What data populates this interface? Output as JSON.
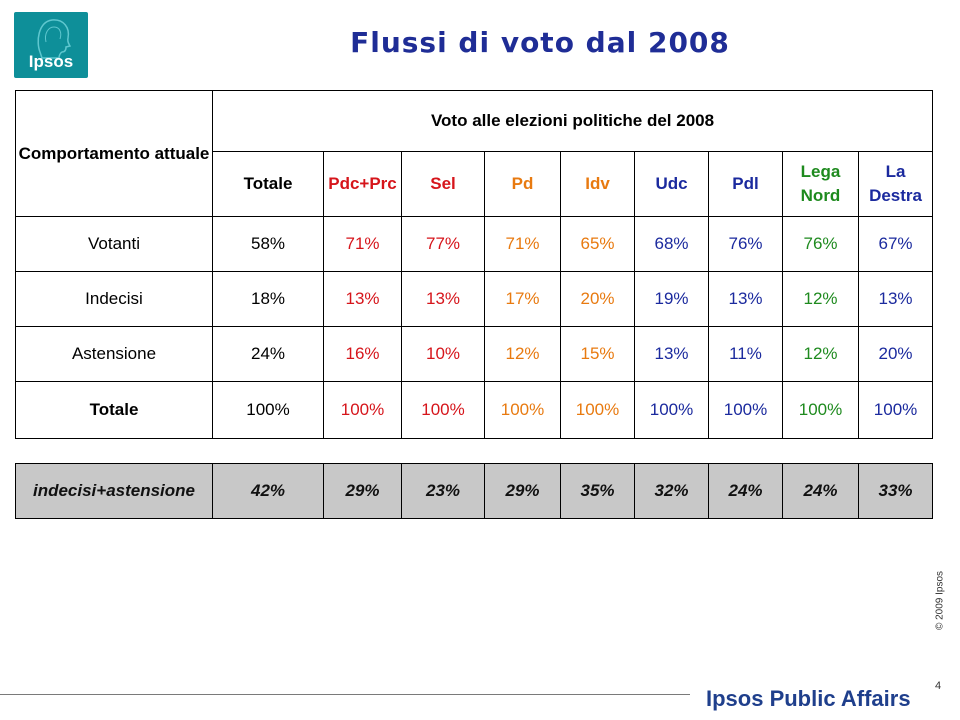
{
  "logo": {
    "text": "Ipsos",
    "color": "#0e8f99"
  },
  "title": "Flussi di voto dal 2008",
  "table": {
    "behavior_header": "Comportamento attuale",
    "vote_header": "Voto alle elezioni politiche del 2008",
    "columns": [
      {
        "label": "Totale",
        "color": "#000000"
      },
      {
        "label": "Pdc+Prc",
        "color": "#d6151b"
      },
      {
        "label": "Sel",
        "color": "#d6151b"
      },
      {
        "label": "Pd",
        "color": "#e87a10"
      },
      {
        "label": "Idv",
        "color": "#e87a10"
      },
      {
        "label": "Udc",
        "color": "#1b2a9e"
      },
      {
        "label": "Pdl",
        "color": "#1b2a9e"
      },
      {
        "label": "Lega Nord",
        "color": "#1e8a1e"
      },
      {
        "label": "La Destra",
        "color": "#1b2a9e"
      }
    ],
    "rows": [
      {
        "label": "Votanti",
        "values": [
          "58%",
          "71%",
          "77%",
          "71%",
          "65%",
          "68%",
          "76%",
          "76%",
          "67%"
        ]
      },
      {
        "label": "Indecisi",
        "values": [
          "18%",
          "13%",
          "13%",
          "17%",
          "20%",
          "19%",
          "13%",
          "12%",
          "13%"
        ]
      },
      {
        "label": "Astensione",
        "values": [
          "24%",
          "16%",
          "10%",
          "12%",
          "15%",
          "13%",
          "11%",
          "12%",
          "20%"
        ]
      },
      {
        "label": "Totale",
        "values": [
          "100%",
          "100%",
          "100%",
          "100%",
          "100%",
          "100%",
          "100%",
          "100%",
          "100%"
        ]
      }
    ]
  },
  "summary": {
    "label": "indecisi+astensione",
    "values": [
      "42%",
      "29%",
      "23%",
      "29%",
      "35%",
      "32%",
      "24%",
      "24%",
      "33%"
    ]
  },
  "footer": {
    "copyright": "© 2009 Ipsos",
    "brand": "Ipsos Public Affairs",
    "page_number": "4"
  }
}
